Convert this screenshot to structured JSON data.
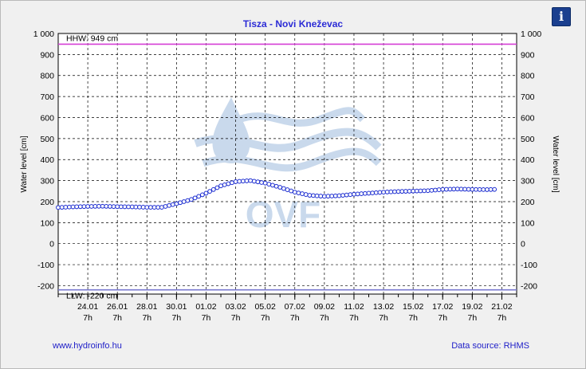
{
  "chart_data": {
    "type": "line",
    "title": "Tisza - Novi Kneževac",
    "ylabel": "Water level [cm]",
    "ylabel_right": "Water level [cm]",
    "ylim": [
      -240,
      1000
    ],
    "yticks": [
      1000,
      900,
      800,
      700,
      600,
      500,
      400,
      300,
      200,
      100,
      0,
      -100,
      -200
    ],
    "ytick_labels": [
      "1 000",
      "900",
      "800",
      "700",
      "600",
      "500",
      "400",
      "300",
      "200",
      "100",
      "0",
      "-100",
      "-200"
    ],
    "x_start": "22.01 7h",
    "x_end": "22.02 7h",
    "xtick_dates": [
      "24.01",
      "26.01",
      "28.01",
      "30.01",
      "01.02",
      "03.02",
      "05.02",
      "07.02",
      "09.02",
      "11.02",
      "13.02",
      "15.02",
      "17.02",
      "19.02",
      "21.02"
    ],
    "xtick_hour": "7h",
    "grid": true,
    "reference_lines": [
      {
        "label": "HHW: 949 cm",
        "value": 949,
        "color": "#d63fd6"
      },
      {
        "label": "LLW: -220 cm",
        "value": -220,
        "color": "#7a7ad0"
      }
    ],
    "series": [
      {
        "color": "#1a2bd0",
        "x": [
          "22.01 7h",
          "23.01 7h",
          "24.01 7h",
          "25.01 7h",
          "26.01 7h",
          "27.01 7h",
          "28.01 7h",
          "29.01 7h",
          "30.01 7h",
          "31.01 7h",
          "01.02 7h",
          "02.02 7h",
          "03.02 7h",
          "04.02 7h",
          "05.02 7h",
          "06.02 7h",
          "07.02 7h",
          "08.02 7h",
          "09.02 7h",
          "10.02 7h",
          "11.02 7h",
          "12.02 7h",
          "13.02 7h",
          "14.02 7h",
          "15.02 7h",
          "16.02 7h",
          "17.02 7h",
          "18.02 7h",
          "19.02 7h",
          "20.02 7h",
          "20.02 19h"
        ],
        "values": [
          172,
          175,
          177,
          178,
          176,
          175,
          173,
          173,
          190,
          210,
          240,
          275,
          295,
          300,
          288,
          268,
          245,
          230,
          225,
          228,
          235,
          240,
          245,
          248,
          250,
          252,
          258,
          260,
          258,
          257,
          258
        ]
      }
    ]
  },
  "logo": {
    "text": "OVF",
    "color": "#c9d9ec"
  },
  "info_icon": "info-icon",
  "footer": {
    "website": "www.hydroinfo.hu",
    "source": "Data source: RHMS"
  }
}
